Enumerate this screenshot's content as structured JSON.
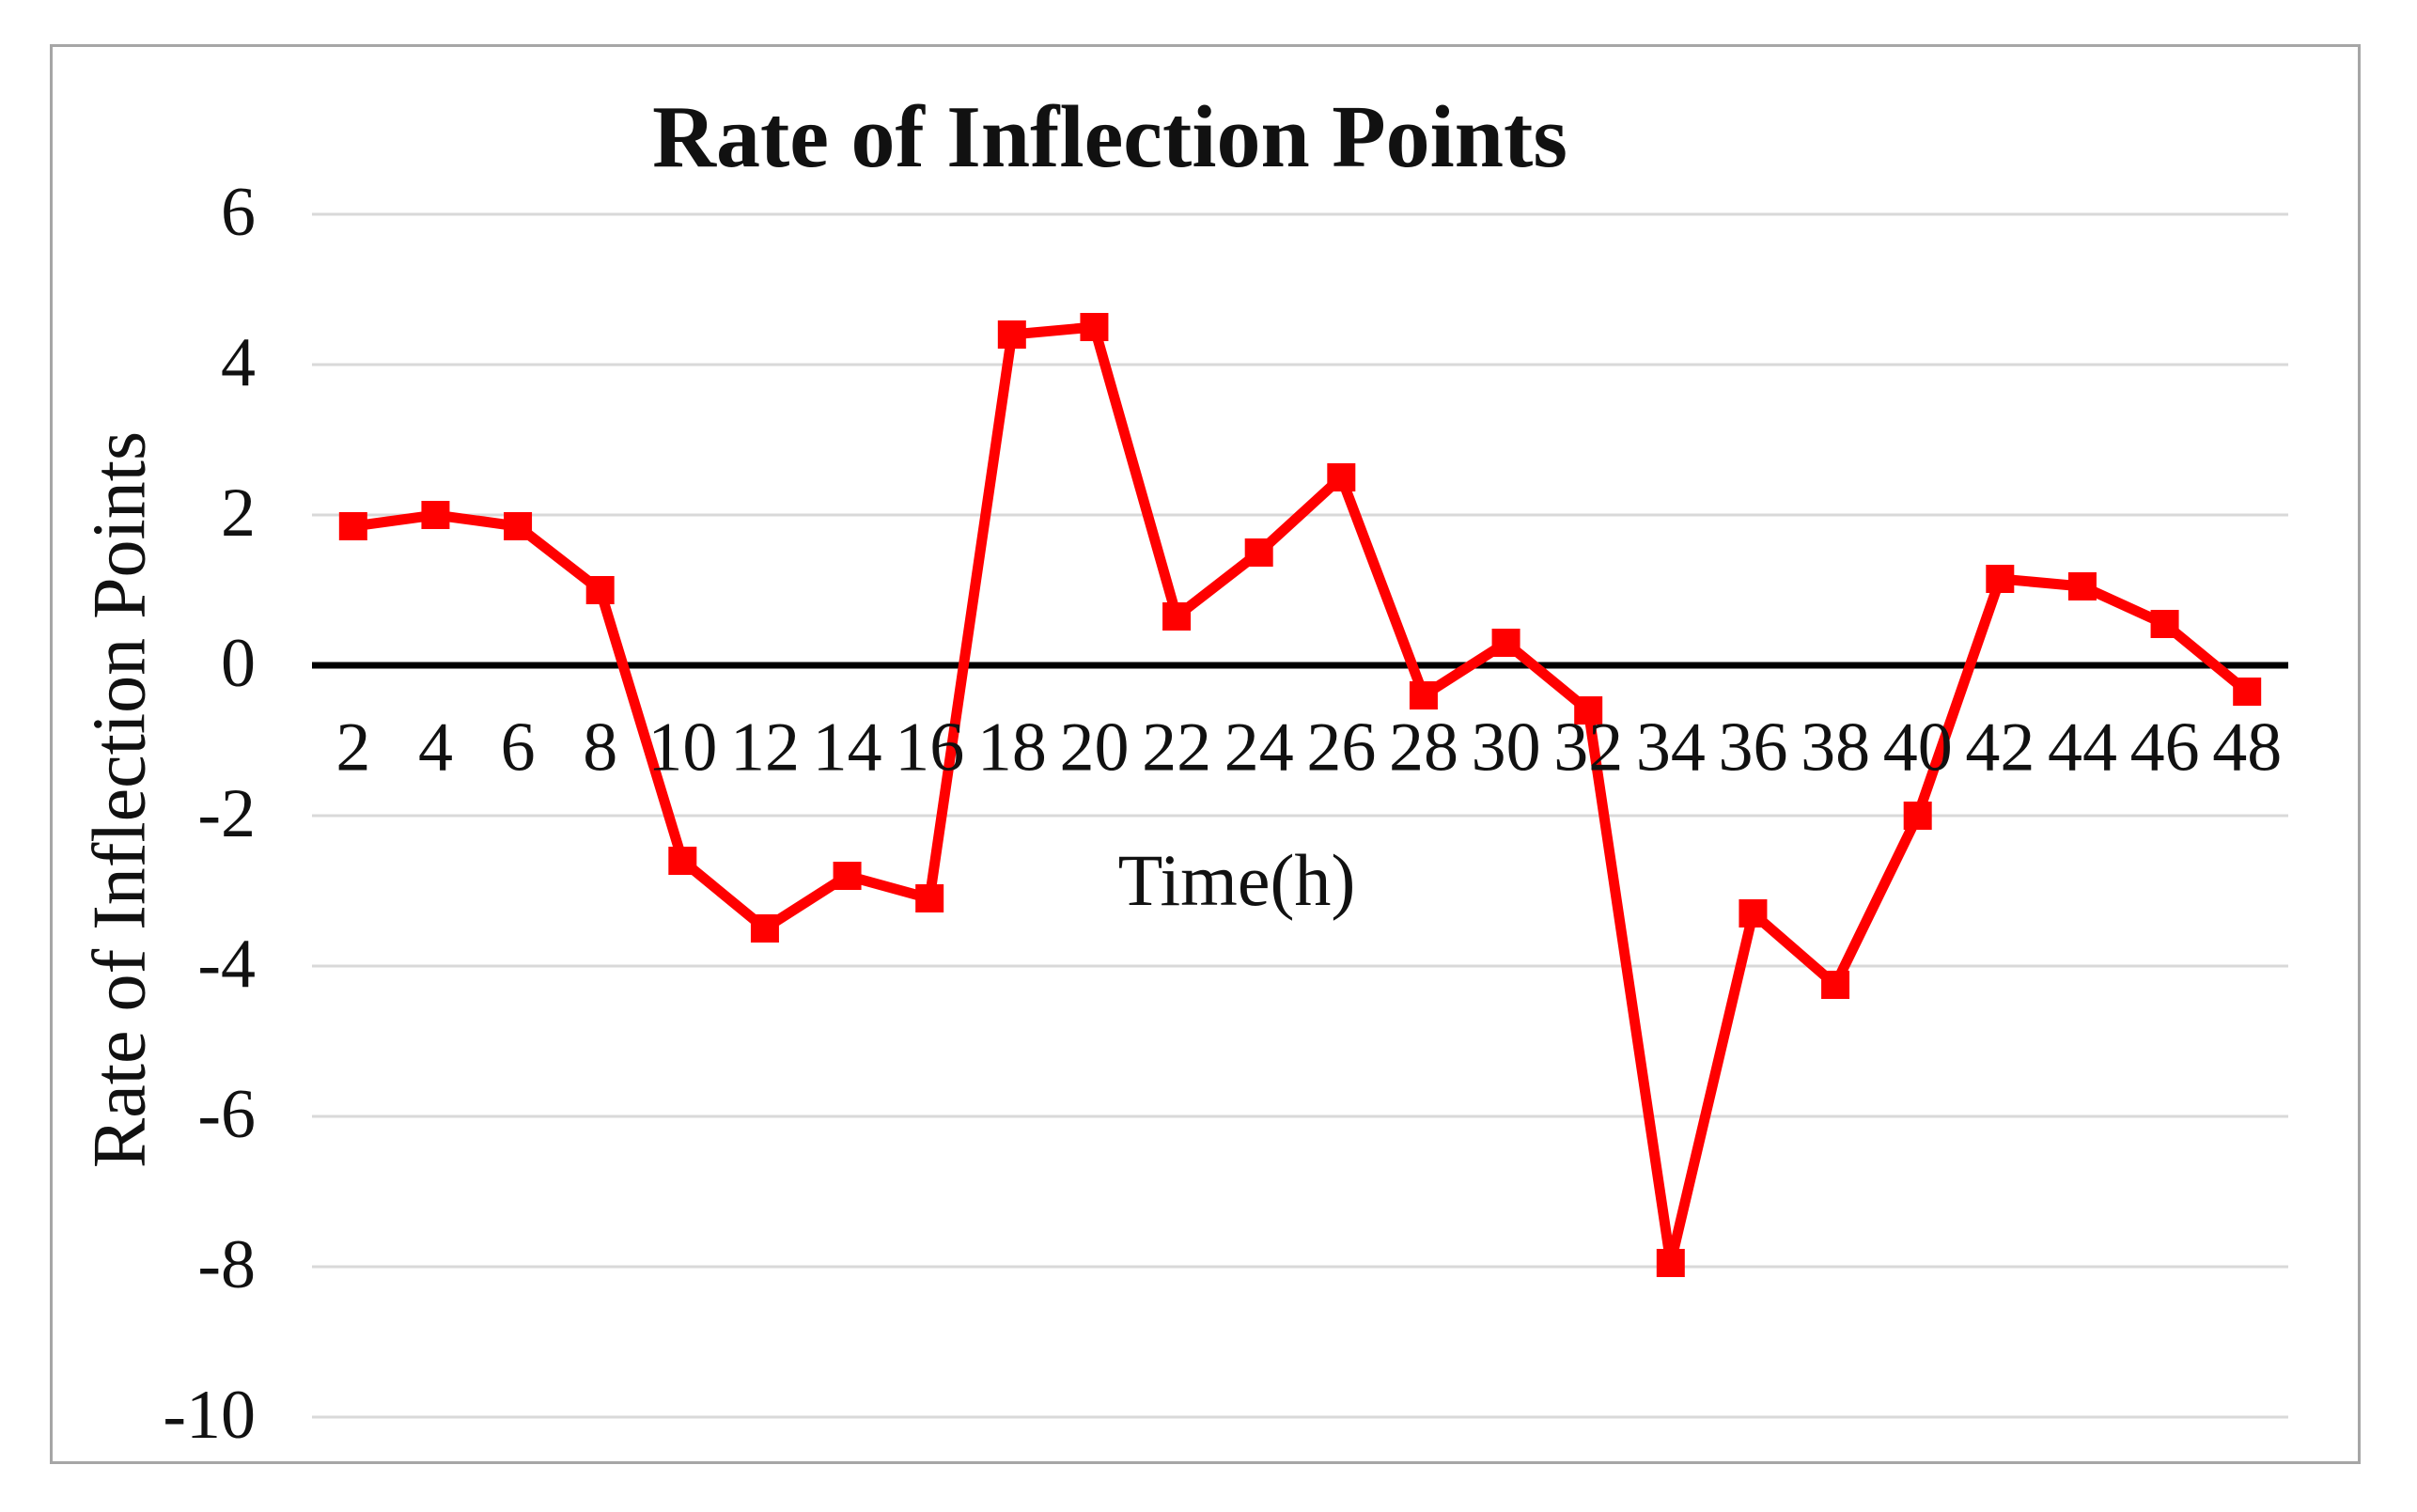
{
  "window": {
    "background": "#ffffff",
    "frame_border_color": "#a6a6a6"
  },
  "chart_data": {
    "type": "line",
    "title": "Rate of Inflection Points",
    "xlabel": "Time(h)",
    "ylabel": "Rate of Inflection Points",
    "x": [
      2,
      4,
      6,
      8,
      10,
      12,
      14,
      16,
      18,
      20,
      22,
      24,
      26,
      28,
      30,
      32,
      34,
      36,
      38,
      40,
      42,
      44,
      46,
      48
    ],
    "y": [
      1.85,
      2.0,
      1.85,
      1.0,
      -2.6,
      -3.5,
      -2.8,
      -3.1,
      4.4,
      4.5,
      0.65,
      1.5,
      2.5,
      -0.4,
      0.3,
      -0.6,
      -7.95,
      -3.3,
      -4.25,
      -2.0,
      1.15,
      1.05,
      0.55,
      -0.35
    ],
    "x_tick_labels": [
      "2",
      "4",
      "6",
      "8",
      "10",
      "12",
      "14",
      "16",
      "18",
      "20",
      "22",
      "24",
      "26",
      "28",
      "30",
      "32",
      "34",
      "36",
      "38",
      "40",
      "42",
      "44",
      "46",
      "48"
    ],
    "y_tick_labels": [
      "6",
      "4",
      "2",
      "0",
      "-2",
      "-4",
      "-6",
      "-8",
      "-10"
    ],
    "y_tick_values": [
      6,
      4,
      2,
      0,
      -2,
      -4,
      -6,
      -8,
      -10
    ],
    "ylim": [
      -10,
      6
    ],
    "grid": "horizontal",
    "legend_position": "none",
    "series_color": "#ff0000",
    "marker": "square",
    "gridline_color": "#d9d9d9",
    "zero_axis_color": "#000000"
  }
}
